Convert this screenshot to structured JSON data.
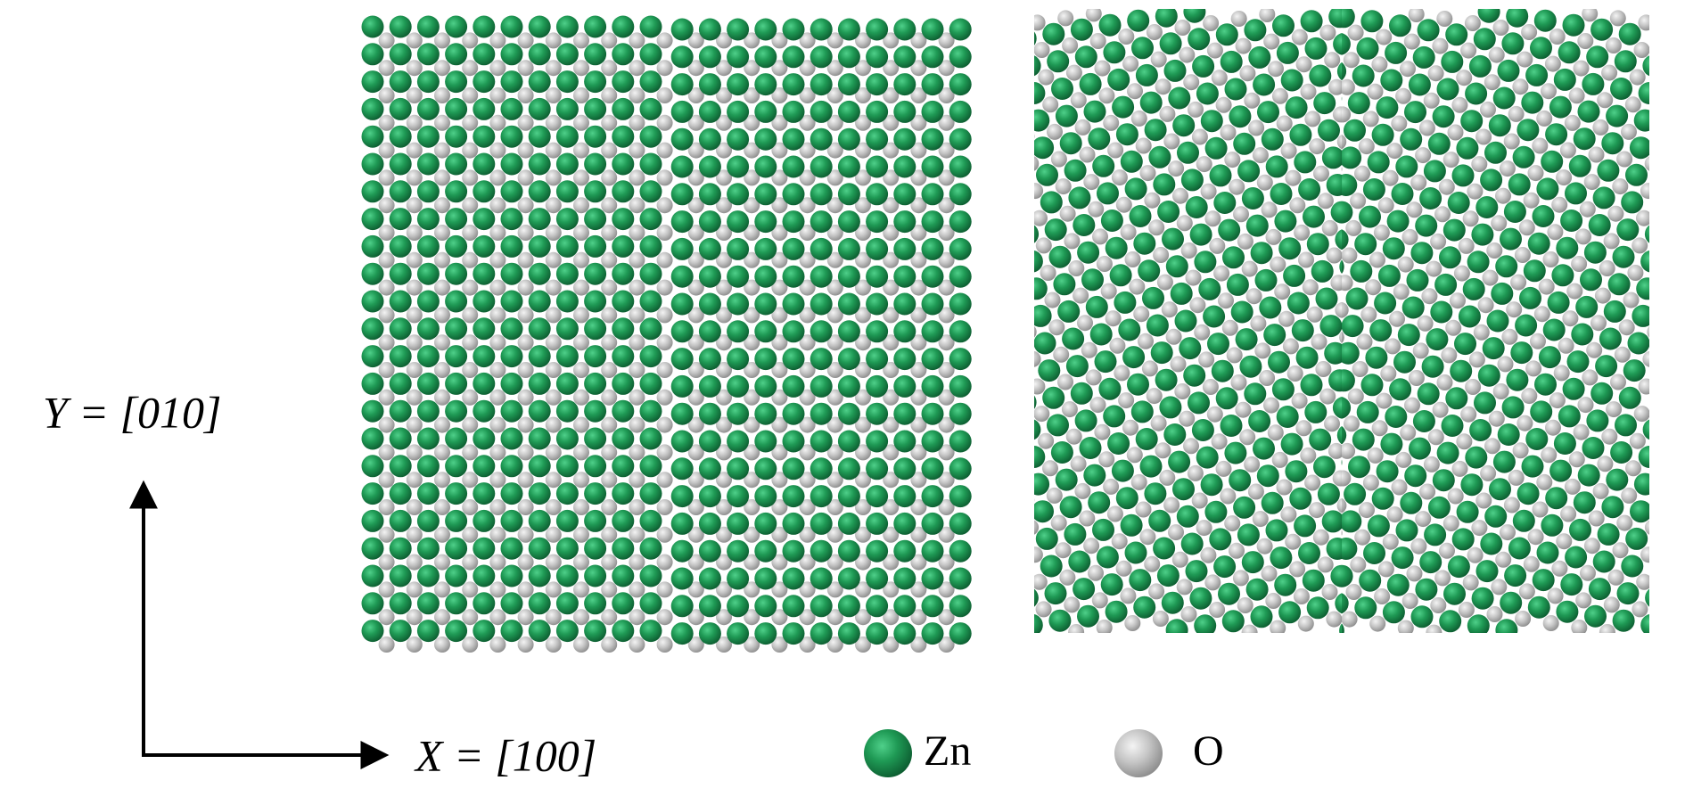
{
  "figure": {
    "axes": {
      "y_label": "Y = [010]",
      "x_label": "X = [100]"
    },
    "legend": [
      {
        "label": "Zn"
      },
      {
        "label": "O"
      }
    ]
  }
}
